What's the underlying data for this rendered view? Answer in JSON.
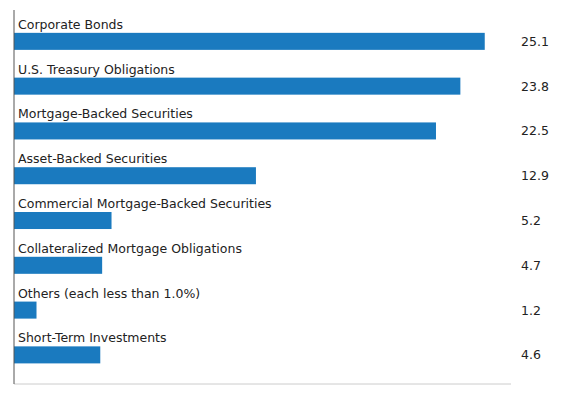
{
  "chart_data": {
    "type": "bar",
    "orientation": "horizontal",
    "categories": [
      "Short-Term Investments",
      "Others (each less than 1.0%)",
      "Collateralized Mortgage Obligations",
      "Commercial Mortgage-Backed Securities",
      "Asset-Backed Securities",
      "Mortgage-Backed Securities",
      "U.S. Treasury Obligations",
      "Corporate Bonds"
    ],
    "values": [
      4.6,
      1.2,
      4.7,
      5.2,
      12.9,
      22.5,
      23.8,
      25.1
    ],
    "color": "#1a7abf",
    "xlim": [
      0,
      26.5
    ],
    "grid": false,
    "tick_labels": false,
    "data_labels": true
  }
}
